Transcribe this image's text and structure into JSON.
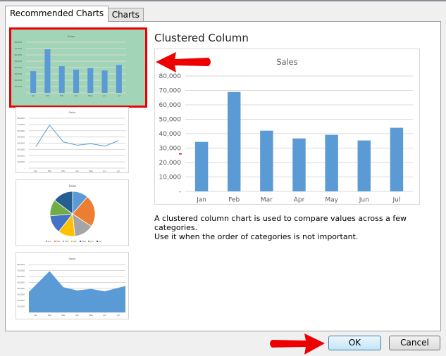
{
  "tabs": [
    {
      "label": "Recommended Charts",
      "active": true
    },
    {
      "label": "All Charts",
      "active": false
    }
  ],
  "selected_chart": {
    "title": "Clustered Column",
    "description_line1": "A clustered column chart is used to compare values across a few categories.",
    "description_line2": "Use it when the order of categories is not important."
  },
  "buttons": {
    "ok": "OK",
    "cancel": "Cancel"
  },
  "thumbnails": [
    {
      "type": "column",
      "selected": true
    },
    {
      "type": "line"
    },
    {
      "type": "pie"
    },
    {
      "type": "area"
    }
  ],
  "colors": {
    "accent": "#5b9bd5",
    "selection": "#e00000",
    "arrow": "#e00000",
    "pie": [
      "#5b9bd5",
      "#ed7d31",
      "#a5a5a5",
      "#ffc000",
      "#4472c4",
      "#70ad47",
      "#255e91"
    ]
  },
  "chart_data": {
    "type": "bar",
    "title": "Sales",
    "categories": [
      "Jan",
      "Feb",
      "Mar",
      "Apr",
      "May",
      "Jun",
      "Jul"
    ],
    "values": [
      34300,
      68900,
      42100,
      36700,
      39200,
      35300,
      44100
    ],
    "ylim": [
      0,
      80000
    ],
    "yticks": [
      "-",
      "10,000",
      "20,000",
      "30,000",
      "40,000",
      "50,000",
      "60,000",
      "70,000",
      "80,000"
    ],
    "grid": true
  }
}
